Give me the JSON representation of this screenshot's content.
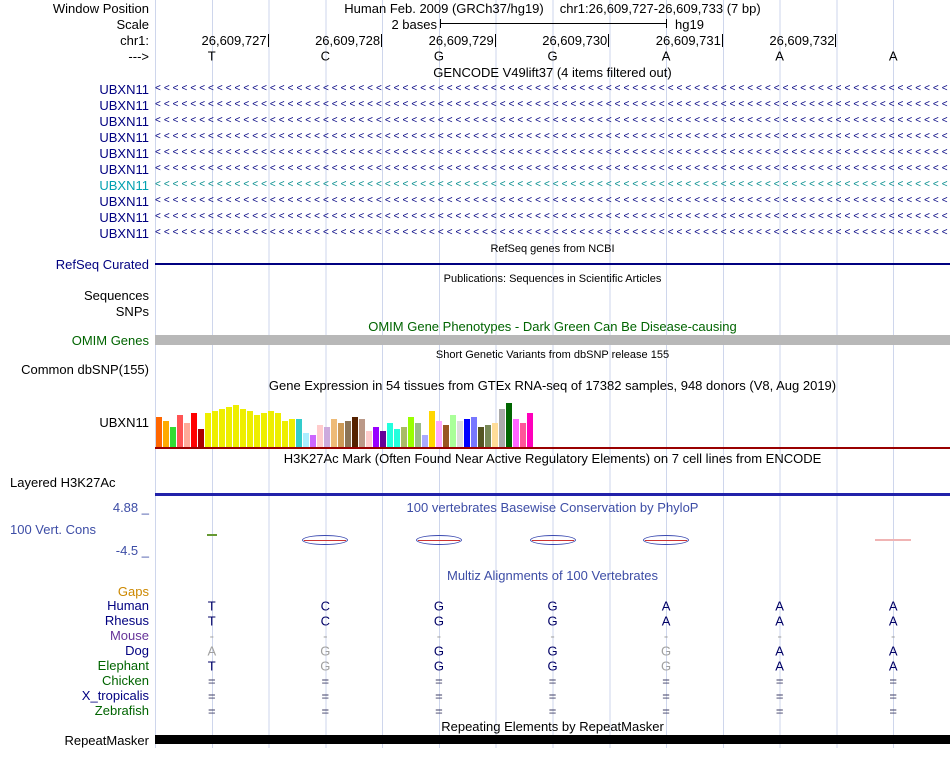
{
  "header": {
    "window_position_label": "Window Position",
    "assembly": "Human Feb. 2009 (GRCh37/hg19)",
    "position": "chr1:26,609,727-26,609,733 (7 bp)",
    "scale_label": "Scale",
    "scale_value": "2 bases",
    "scale_genome": "hg19",
    "chrom_label": "chr1:",
    "strand_label": "--->",
    "coords": [
      "26,609,727",
      "26,609,728",
      "26,609,729",
      "26,609,730",
      "26,609,731",
      "26,609,732"
    ],
    "sequence": [
      "T",
      "C",
      "G",
      "G",
      "A",
      "A",
      "A"
    ]
  },
  "tracks": {
    "gencode": {
      "title": "GENCODE V49lift37 (4 items filtered out)",
      "arrow_char": "<",
      "items": [
        {
          "label": "UBXN11",
          "label_color": "#000080",
          "color": "#000080"
        },
        {
          "label": "UBXN11",
          "label_color": "#000080",
          "color": "#000080"
        },
        {
          "label": "UBXN11",
          "label_color": "#000080",
          "color": "#000080"
        },
        {
          "label": "UBXN11",
          "label_color": "#000080",
          "color": "#000080"
        },
        {
          "label": "UBXN11",
          "label_color": "#000080",
          "color": "#000080"
        },
        {
          "label": "UBXN11",
          "label_color": "#000080",
          "color": "#000080"
        },
        {
          "label": "UBXN11",
          "label_color": "#00a0b0",
          "color": "#008b8b"
        },
        {
          "label": "UBXN11",
          "label_color": "#000080",
          "color": "#000080"
        },
        {
          "label": "UBXN11",
          "label_color": "#000080",
          "color": "#000080"
        },
        {
          "label": "UBXN11",
          "label_color": "#000080",
          "color": "#000080"
        }
      ]
    },
    "refseq": {
      "title": "RefSeq genes from NCBI",
      "label": "RefSeq Curated",
      "color": "#000080"
    },
    "publications": {
      "title": "Publications: Sequences in Scientific Articles",
      "label_sequences": "Sequences",
      "label_snps": "SNPs"
    },
    "omim": {
      "title": "OMIM Gene Phenotypes - Dark Green Can Be Disease-causing",
      "label": "OMIM Genes",
      "color": "#006400",
      "bar_color": "#b8b8b8"
    },
    "dbsnp": {
      "title": "Short Genetic Variants from dbSNP release 155",
      "label": "Common dbSNP(155)"
    },
    "gtex": {
      "title": "Gene Expression in 54 tissues from GTEx RNA-seq of 17382 samples, 948 donors (V8, Aug 2019)",
      "label": "UBXN11",
      "baseline_color": "#990000",
      "bars": [
        {
          "c": "#FF6600",
          "h": 30
        },
        {
          "c": "#FFAA00",
          "h": 26
        },
        {
          "c": "#33DD33",
          "h": 20
        },
        {
          "c": "#FF5555",
          "h": 32
        },
        {
          "c": "#FFAA99",
          "h": 24
        },
        {
          "c": "#FF0000",
          "h": 34
        },
        {
          "c": "#AA0000",
          "h": 18
        },
        {
          "c": "#EEEE00",
          "h": 34
        },
        {
          "c": "#EEEE00",
          "h": 36
        },
        {
          "c": "#EEEE00",
          "h": 38
        },
        {
          "c": "#EEEE00",
          "h": 40
        },
        {
          "c": "#EEEE00",
          "h": 42
        },
        {
          "c": "#EEEE00",
          "h": 38
        },
        {
          "c": "#EEEE00",
          "h": 36
        },
        {
          "c": "#EEEE00",
          "h": 32
        },
        {
          "c": "#EEEE00",
          "h": 34
        },
        {
          "c": "#EEEE00",
          "h": 36
        },
        {
          "c": "#EEEE00",
          "h": 34
        },
        {
          "c": "#EEEE00",
          "h": 26
        },
        {
          "c": "#EEEE00",
          "h": 28
        },
        {
          "c": "#33CCCC",
          "h": 28
        },
        {
          "c": "#AAEEFF",
          "h": 14
        },
        {
          "c": "#CC66FF",
          "h": 12
        },
        {
          "c": "#FFCCCC",
          "h": 22
        },
        {
          "c": "#CCAADD",
          "h": 20
        },
        {
          "c": "#EEBB77",
          "h": 28
        },
        {
          "c": "#CC9955",
          "h": 24
        },
        {
          "c": "#8B7355",
          "h": 26
        },
        {
          "c": "#552200",
          "h": 30
        },
        {
          "c": "#BB9988",
          "h": 28
        },
        {
          "c": "#FFCCCC",
          "h": 16
        },
        {
          "c": "#9900FF",
          "h": 20
        },
        {
          "c": "#660099",
          "h": 16
        },
        {
          "c": "#22FFDD",
          "h": 24
        },
        {
          "c": "#22FFDD",
          "h": 18
        },
        {
          "c": "#AABB66",
          "h": 20
        },
        {
          "c": "#99FF00",
          "h": 30
        },
        {
          "c": "#99BB88",
          "h": 24
        },
        {
          "c": "#AAAAFF",
          "h": 12
        },
        {
          "c": "#FFD700",
          "h": 36
        },
        {
          "c": "#FFAAFF",
          "h": 26
        },
        {
          "c": "#995522",
          "h": 22
        },
        {
          "c": "#AAFF99",
          "h": 32
        },
        {
          "c": "#DDDDDD",
          "h": 26
        },
        {
          "c": "#0000FF",
          "h": 28
        },
        {
          "c": "#7777FF",
          "h": 30
        },
        {
          "c": "#555522",
          "h": 20
        },
        {
          "c": "#778855",
          "h": 22
        },
        {
          "c": "#FFDD99",
          "h": 24
        },
        {
          "c": "#AAAAAA",
          "h": 38
        },
        {
          "c": "#006600",
          "h": 44
        },
        {
          "c": "#FF66FF",
          "h": 28
        },
        {
          "c": "#FF5599",
          "h": 24
        },
        {
          "c": "#FF00BB",
          "h": 34
        }
      ]
    },
    "h3k27ac": {
      "title": "H3K27Ac Mark (Often Found Near Active Regulatory Elements) on 7 cell lines from ENCODE",
      "label": "Layered H3K27Ac",
      "line_color": "#2222aa"
    },
    "phylop": {
      "title": "100 vertebrates Basewise Conservation by PhyloP",
      "label": "100 Vert. Cons",
      "max_label": "4.88 _",
      "min_label": "-4.5 _",
      "color": "#3d4da6",
      "marks": [
        {
          "type": "tick",
          "base": 0,
          "color": "#669933"
        },
        {
          "type": "lens",
          "base": 1
        },
        {
          "type": "lens",
          "base": 2
        },
        {
          "type": "lens",
          "base": 3
        },
        {
          "type": "lens",
          "base": 4
        },
        {
          "type": "line",
          "base": 6,
          "color": "#f0b4b4"
        }
      ]
    },
    "multiz": {
      "title": "Multiz Alignments of 100 Vertebrates",
      "color": "#3d4da6",
      "gaps_label": "Gaps",
      "gaps_color": "#cc8800",
      "rows": [
        {
          "name": "Human",
          "label_color": "#000080",
          "cells": [
            {
              "t": "T",
              "c": "#000066"
            },
            {
              "t": "C",
              "c": "#000066"
            },
            {
              "t": "G",
              "c": "#000066"
            },
            {
              "t": "G",
              "c": "#000066"
            },
            {
              "t": "A",
              "c": "#000066"
            },
            {
              "t": "A",
              "c": "#000066"
            },
            {
              "t": "A",
              "c": "#000066"
            }
          ]
        },
        {
          "name": "Rhesus",
          "label_color": "#000080",
          "cells": [
            {
              "t": "T",
              "c": "#000066"
            },
            {
              "t": "C",
              "c": "#000066"
            },
            {
              "t": "G",
              "c": "#000066"
            },
            {
              "t": "G",
              "c": "#000066"
            },
            {
              "t": "A",
              "c": "#000066"
            },
            {
              "t": "A",
              "c": "#000066"
            },
            {
              "t": "A",
              "c": "#000066"
            }
          ]
        },
        {
          "name": "Mouse",
          "label_color": "#663399",
          "cells": [
            {
              "t": "-",
              "c": "#a0a0a0"
            },
            {
              "t": "-",
              "c": "#a0a0a0"
            },
            {
              "t": "-",
              "c": "#a0a0a0"
            },
            {
              "t": "-",
              "c": "#a0a0a0"
            },
            {
              "t": "-",
              "c": "#a0a0a0"
            },
            {
              "t": "-",
              "c": "#a0a0a0"
            },
            {
              "t": "-",
              "c": "#a0a0a0"
            }
          ]
        },
        {
          "name": "Dog",
          "label_color": "#000080",
          "cells": [
            {
              "t": "A",
              "c": "#a0a0a0"
            },
            {
              "t": "G",
              "c": "#a0a0a0"
            },
            {
              "t": "G",
              "c": "#000066"
            },
            {
              "t": "G",
              "c": "#000066"
            },
            {
              "t": "G",
              "c": "#a0a0a0"
            },
            {
              "t": "A",
              "c": "#000066"
            },
            {
              "t": "A",
              "c": "#000066"
            }
          ]
        },
        {
          "name": "Elephant",
          "label_color": "#006400",
          "cells": [
            {
              "t": "T",
              "c": "#000066"
            },
            {
              "t": "G",
              "c": "#a0a0a0"
            },
            {
              "t": "G",
              "c": "#000066"
            },
            {
              "t": "G",
              "c": "#000066"
            },
            {
              "t": "G",
              "c": "#a0a0a0"
            },
            {
              "t": "A",
              "c": "#000066"
            },
            {
              "t": "A",
              "c": "#000066"
            }
          ]
        },
        {
          "name": "Chicken",
          "label_color": "#006400",
          "cells": [
            {
              "t": "=",
              "c": "#3d3d66"
            },
            {
              "t": "=",
              "c": "#3d3d66"
            },
            {
              "t": "=",
              "c": "#3d3d66"
            },
            {
              "t": "=",
              "c": "#3d3d66"
            },
            {
              "t": "=",
              "c": "#3d3d66"
            },
            {
              "t": "=",
              "c": "#3d3d66"
            },
            {
              "t": "=",
              "c": "#3d3d66"
            }
          ]
        },
        {
          "name": "X_tropicalis",
          "label_color": "#000080",
          "cells": [
            {
              "t": "=",
              "c": "#3d3d66"
            },
            {
              "t": "=",
              "c": "#3d3d66"
            },
            {
              "t": "=",
              "c": "#3d3d66"
            },
            {
              "t": "=",
              "c": "#3d3d66"
            },
            {
              "t": "=",
              "c": "#3d3d66"
            },
            {
              "t": "=",
              "c": "#3d3d66"
            },
            {
              "t": "=",
              "c": "#3d3d66"
            }
          ]
        },
        {
          "name": "Zebrafish",
          "label_color": "#006400",
          "cells": [
            {
              "t": "=",
              "c": "#3d3d66"
            },
            {
              "t": "=",
              "c": "#3d3d66"
            },
            {
              "t": "=",
              "c": "#3d3d66"
            },
            {
              "t": "=",
              "c": "#3d3d66"
            },
            {
              "t": "=",
              "c": "#3d3d66"
            },
            {
              "t": "=",
              "c": "#3d3d66"
            },
            {
              "t": "=",
              "c": "#3d3d66"
            }
          ]
        }
      ]
    },
    "repeatmasker": {
      "title": "Repeating Elements by RepeatMasker",
      "label": "RepeatMasker",
      "bar_color": "#000000"
    }
  }
}
